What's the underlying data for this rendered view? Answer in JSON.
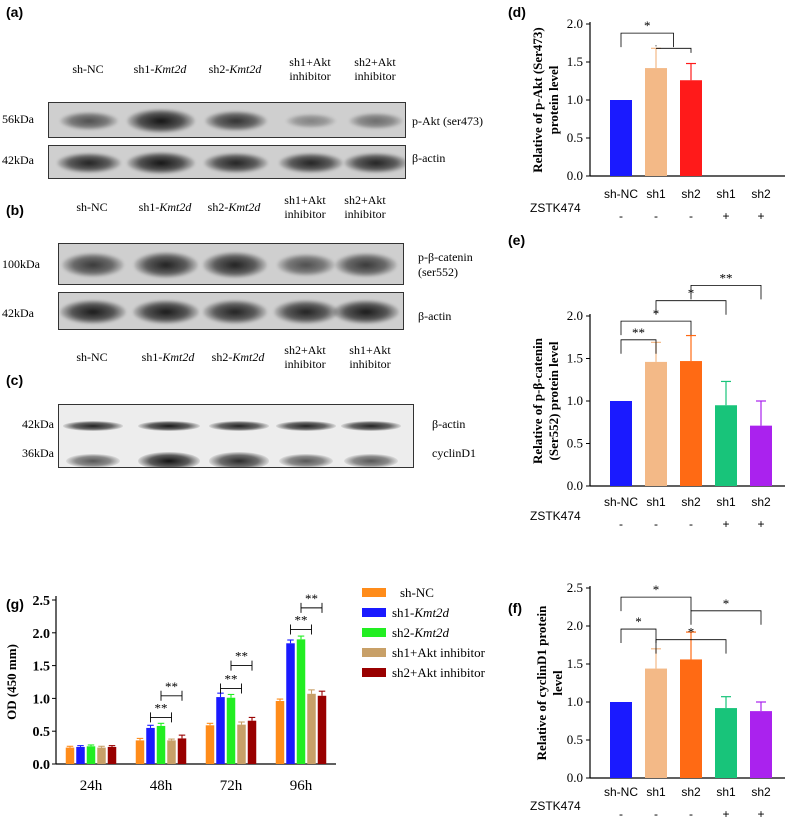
{
  "panels": {
    "a": {
      "label": "(a)",
      "lanes": [
        {
          "prefix": "sh-NC",
          "gene": "",
          "line2": ""
        },
        {
          "prefix": "sh1-",
          "gene": "Kmt2d",
          "line2": ""
        },
        {
          "prefix": "sh2-",
          "gene": "Kmt2d",
          "line2": ""
        },
        {
          "prefix": "sh1+Akt",
          "gene": "",
          "line2": "inhibitor"
        },
        {
          "prefix": "sh2+Akt",
          "gene": "",
          "line2": "inhibitor"
        }
      ],
      "rows": [
        {
          "kda": "56kDa",
          "protein": "p-Akt (ser473)",
          "intensity": [
            0.55,
            0.95,
            0.75,
            0.2,
            0.35
          ]
        },
        {
          "kda": "42kDa",
          "protein": "β-actin",
          "intensity": [
            0.85,
            0.95,
            0.85,
            0.85,
            0.85
          ]
        }
      ]
    },
    "b": {
      "label": "(b)",
      "lanes": [
        {
          "prefix": "sh-NC",
          "gene": "",
          "line2": ""
        },
        {
          "prefix": "sh1-",
          "gene": "Kmt2d",
          "line2": ""
        },
        {
          "prefix": "sh2-",
          "gene": "Kmt2d",
          "line2": ""
        },
        {
          "prefix": "sh1+Akt",
          "gene": "",
          "line2": "inhibitor"
        },
        {
          "prefix": "sh2+Akt",
          "gene": "",
          "line2": "inhibitor"
        }
      ],
      "rows": [
        {
          "kda": "100kDa",
          "protein": "p-β-catenin",
          "protein2": "(ser552)",
          "intensity": [
            0.7,
            0.85,
            0.85,
            0.55,
            0.7
          ]
        },
        {
          "kda": "42kDa",
          "protein": "β-actin",
          "intensity": [
            0.9,
            0.9,
            0.85,
            0.85,
            0.9
          ]
        }
      ]
    },
    "c": {
      "label": "(c)",
      "lanes": [
        {
          "prefix": "sh-NC",
          "gene": "",
          "line2": ""
        },
        {
          "prefix": "sh1-",
          "gene": "Kmt2d",
          "line2": ""
        },
        {
          "prefix": "sh2-",
          "gene": "Kmt2d",
          "line2": ""
        },
        {
          "prefix": "sh2+Akt",
          "gene": "",
          "line2": "inhibitor"
        },
        {
          "prefix": "sh1+Akt",
          "gene": "",
          "line2": "inhibitor"
        }
      ],
      "rows": [
        {
          "kda": "42kDa",
          "protein": "β-actin",
          "intensity": [
            0.85,
            0.9,
            0.85,
            0.85,
            0.85
          ]
        },
        {
          "kda": "36kDa",
          "protein": "cyclinD1",
          "intensity": [
            0.55,
            0.95,
            0.8,
            0.55,
            0.55
          ]
        }
      ]
    },
    "d": {
      "label": "(d)"
    },
    "e": {
      "label": "(e)"
    },
    "f": {
      "label": "(f)"
    },
    "g": {
      "label": "(g)"
    }
  },
  "chart_data": [
    {
      "panel": "d",
      "type": "bar",
      "ylabel": "Relative of p-Akt (Ser473) protein level",
      "ylim": [
        0,
        2.0
      ],
      "yticks": [
        "0.0",
        "0.5",
        "1.0",
        "1.5",
        "2.0"
      ],
      "categories": [
        "sh-NC",
        "sh1",
        "sh2",
        "sh1",
        "sh2"
      ],
      "zstk_label": "ZSTK474",
      "zstk": [
        "-",
        "-",
        "-",
        "+",
        "+"
      ],
      "values": [
        1.0,
        1.42,
        1.26,
        null,
        null
      ],
      "errors": [
        0,
        0.26,
        0.22,
        0,
        0
      ],
      "colors": [
        "#1a1aff",
        "#f3b987",
        "#ff1a1a",
        "#18c47a",
        "#aa22ee"
      ],
      "significance": [
        "*"
      ]
    },
    {
      "panel": "e",
      "type": "bar",
      "ylabel": "Relative of p-β-catenin (Ser552) protein level",
      "ylim": [
        0,
        2.0
      ],
      "yticks": [
        "0.0",
        "0.5",
        "1.0",
        "1.5",
        "2.0"
      ],
      "categories": [
        "sh-NC",
        "sh1",
        "sh2",
        "sh1",
        "sh2"
      ],
      "zstk_label": "ZSTK474",
      "zstk": [
        "-",
        "-",
        "-",
        "+",
        "+"
      ],
      "values": [
        1.0,
        1.46,
        1.47,
        0.95,
        0.71
      ],
      "errors": [
        0,
        0.23,
        0.3,
        0.28,
        0.29
      ],
      "colors": [
        "#1a1aff",
        "#f3b987",
        "#ff6a14",
        "#18c47a",
        "#aa22ee"
      ],
      "significance": [
        "**",
        "*",
        "*",
        "**"
      ]
    },
    {
      "panel": "f",
      "type": "bar",
      "ylabel": "Relative of cyclinD1 protein level",
      "ylim": [
        0,
        2.5
      ],
      "yticks": [
        "0.0",
        "0.5",
        "1.0",
        "1.5",
        "2.0",
        "2.5"
      ],
      "categories": [
        "sh-NC",
        "sh1",
        "sh2",
        "sh1",
        "sh2"
      ],
      "zstk_label": "ZSTK474",
      "zstk": [
        "-",
        "-",
        "-",
        "+",
        "+"
      ],
      "values": [
        1.0,
        1.44,
        1.56,
        0.92,
        0.88
      ],
      "errors": [
        0,
        0.26,
        0.36,
        0.15,
        0.12
      ],
      "colors": [
        "#1a1aff",
        "#f3b987",
        "#ff6a14",
        "#18c47a",
        "#aa22ee"
      ],
      "significance": [
        "*",
        "*",
        "*",
        "*"
      ]
    },
    {
      "panel": "g",
      "type": "bar",
      "ylabel": "OD (450 mm)",
      "ylim": [
        0,
        2.5
      ],
      "yticks": [
        "0.0",
        "0.5",
        "1.0",
        "1.5",
        "2.0",
        "2.5"
      ],
      "categories": [
        "24h",
        "48h",
        "72h",
        "96h"
      ],
      "series": [
        {
          "name": "sh-NC",
          "prefix": "sh-NC",
          "gene": "",
          "color": "#ff8c1a",
          "values": [
            0.25,
            0.36,
            0.59,
            0.96
          ],
          "errors": [
            0.02,
            0.03,
            0.03,
            0.03
          ]
        },
        {
          "name": "sh1-Kmt2d",
          "prefix": "sh1-",
          "gene": "Kmt2d",
          "color": "#1a1aff",
          "values": [
            0.26,
            0.55,
            1.02,
            1.84
          ],
          "errors": [
            0.02,
            0.04,
            0.06,
            0.05
          ]
        },
        {
          "name": "sh2-Kmt2d",
          "prefix": "sh2-",
          "gene": "Kmt2d",
          "color": "#22ee22",
          "values": [
            0.27,
            0.58,
            1.01,
            1.9
          ],
          "errors": [
            0.02,
            0.04,
            0.05,
            0.05
          ]
        },
        {
          "name": "sh1+Akt inhibitor",
          "prefix": "sh1+Akt inhibitor",
          "gene": "",
          "color": "#c8a068",
          "values": [
            0.25,
            0.36,
            0.6,
            1.07
          ],
          "errors": [
            0.02,
            0.02,
            0.04,
            0.06
          ]
        },
        {
          "name": "sh2+Akt inhibitor",
          "prefix": "sh2+Akt inhibitor",
          "gene": "",
          "color": "#990000",
          "values": [
            0.26,
            0.39,
            0.66,
            1.04
          ],
          "errors": [
            0.02,
            0.05,
            0.05,
            0.07
          ]
        }
      ],
      "significance": [
        "**",
        "**",
        "**",
        "**",
        "**",
        "**"
      ]
    }
  ]
}
